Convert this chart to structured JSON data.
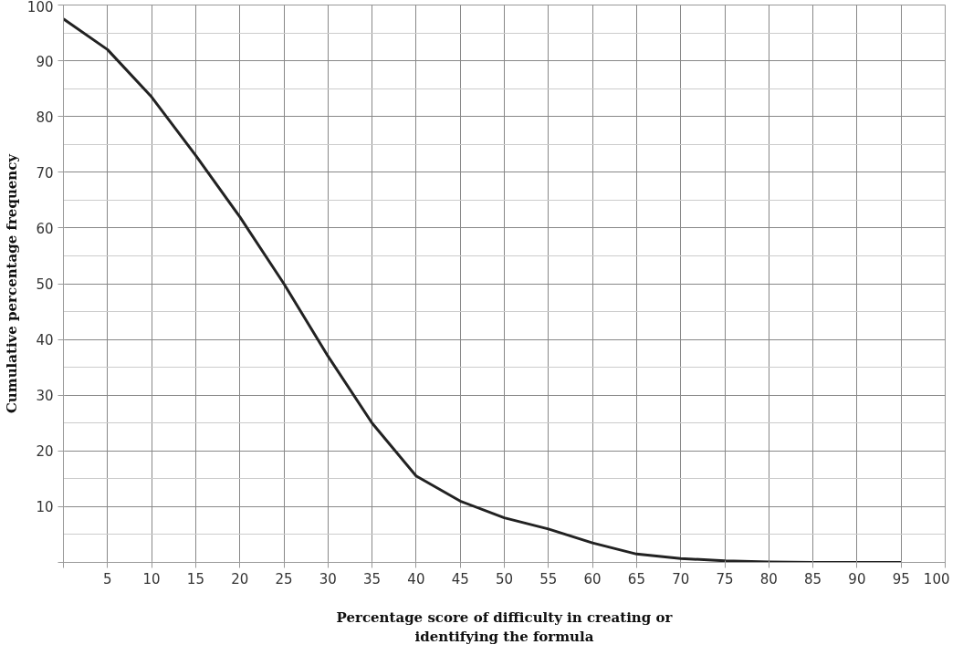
{
  "chart_data": {
    "type": "line",
    "xlabel": "Percentage score of difficulty in creating or\nidentifying the formula",
    "ylabel": "Cumulative percentage frequency",
    "x": [
      0,
      5,
      10,
      15,
      20,
      25,
      30,
      35,
      40,
      45,
      50,
      55,
      60,
      65,
      70,
      75,
      80,
      85,
      90,
      95
    ],
    "series": [
      {
        "color": "#222222",
        "values": [
          97.5,
          92,
          83.5,
          73,
          62,
          50,
          37,
          25,
          15.5,
          11,
          8,
          6,
          3.5,
          1.5,
          0.7,
          0.3,
          0.1,
          0,
          0,
          0
        ]
      }
    ],
    "xlim": [
      0,
      100
    ],
    "ylim": [
      0,
      100
    ],
    "xticks": [
      {
        "value": 0,
        "label": null
      },
      5,
      10,
      15,
      20,
      25,
      30,
      35,
      40,
      45,
      50,
      55,
      60,
      65,
      70,
      75,
      80,
      85,
      90,
      95,
      100
    ],
    "yticks": [
      {
        "value": 0,
        "label": null
      },
      10,
      20,
      30,
      40,
      50,
      60,
      70,
      80,
      90,
      100
    ],
    "grid": true,
    "line_style": "solid",
    "marker": "none"
  }
}
